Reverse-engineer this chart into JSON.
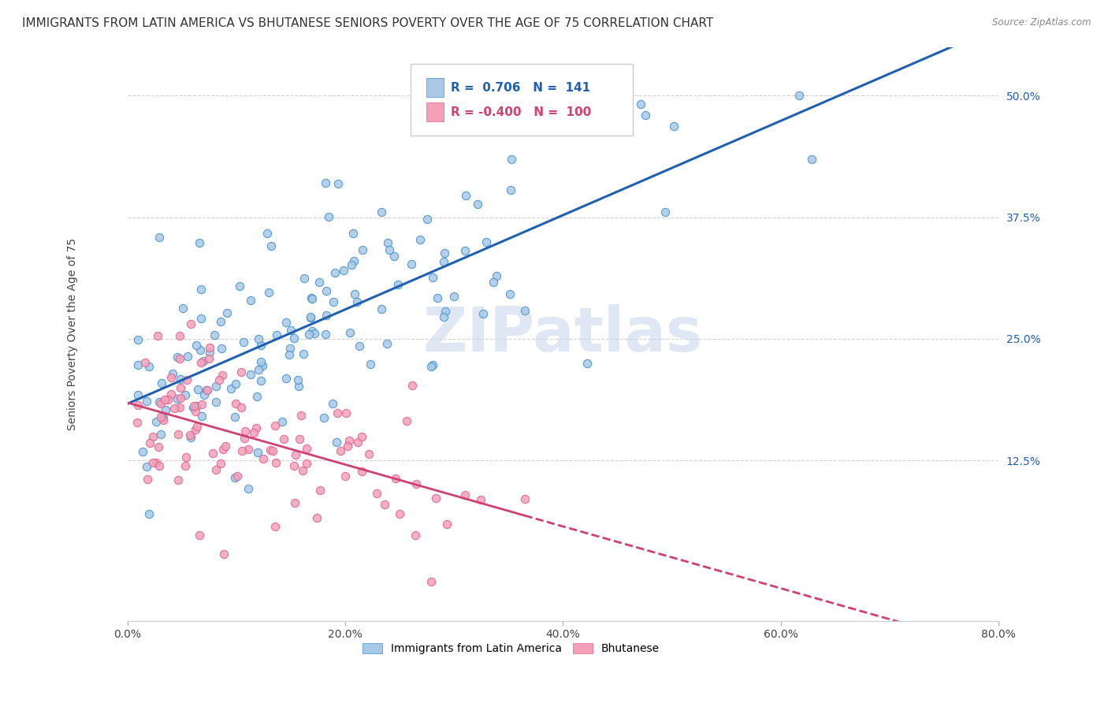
{
  "title": "IMMIGRANTS FROM LATIN AMERICA VS BHUTANESE SENIORS POVERTY OVER THE AGE OF 75 CORRELATION CHART",
  "source": "Source: ZipAtlas.com",
  "ylabel": "Seniors Poverty Over the Age of 75",
  "xlabel_ticks": [
    "0.0%",
    "20.0%",
    "40.0%",
    "60.0%",
    "80.0%"
  ],
  "xlabel_vals": [
    0.0,
    0.2,
    0.4,
    0.6,
    0.8
  ],
  "ylabel_ticks": [
    "12.5%",
    "25.0%",
    "37.5%",
    "50.0%"
  ],
  "ylabel_vals": [
    0.125,
    0.25,
    0.375,
    0.5
  ],
  "blue_R": 0.706,
  "blue_N": 141,
  "pink_R": -0.4,
  "pink_N": 100,
  "blue_color": "#a8c8e8",
  "pink_color": "#f4a0b8",
  "blue_line_color": "#2060b0",
  "pink_line_color": "#d04070",
  "blue_edge_color": "#4090c8",
  "pink_edge_color": "#e06090",
  "watermark": "ZIPatlas",
  "legend_label_blue": "Immigrants from Latin America",
  "legend_label_pink": "Bhutanese",
  "xmin": 0.0,
  "xmax": 0.8,
  "ymin": -0.04,
  "ymax": 0.55,
  "title_fontsize": 11,
  "axis_label_fontsize": 10,
  "tick_fontsize": 10,
  "legend_fontsize": 11,
  "blue_seed": 42,
  "pink_seed": 99
}
